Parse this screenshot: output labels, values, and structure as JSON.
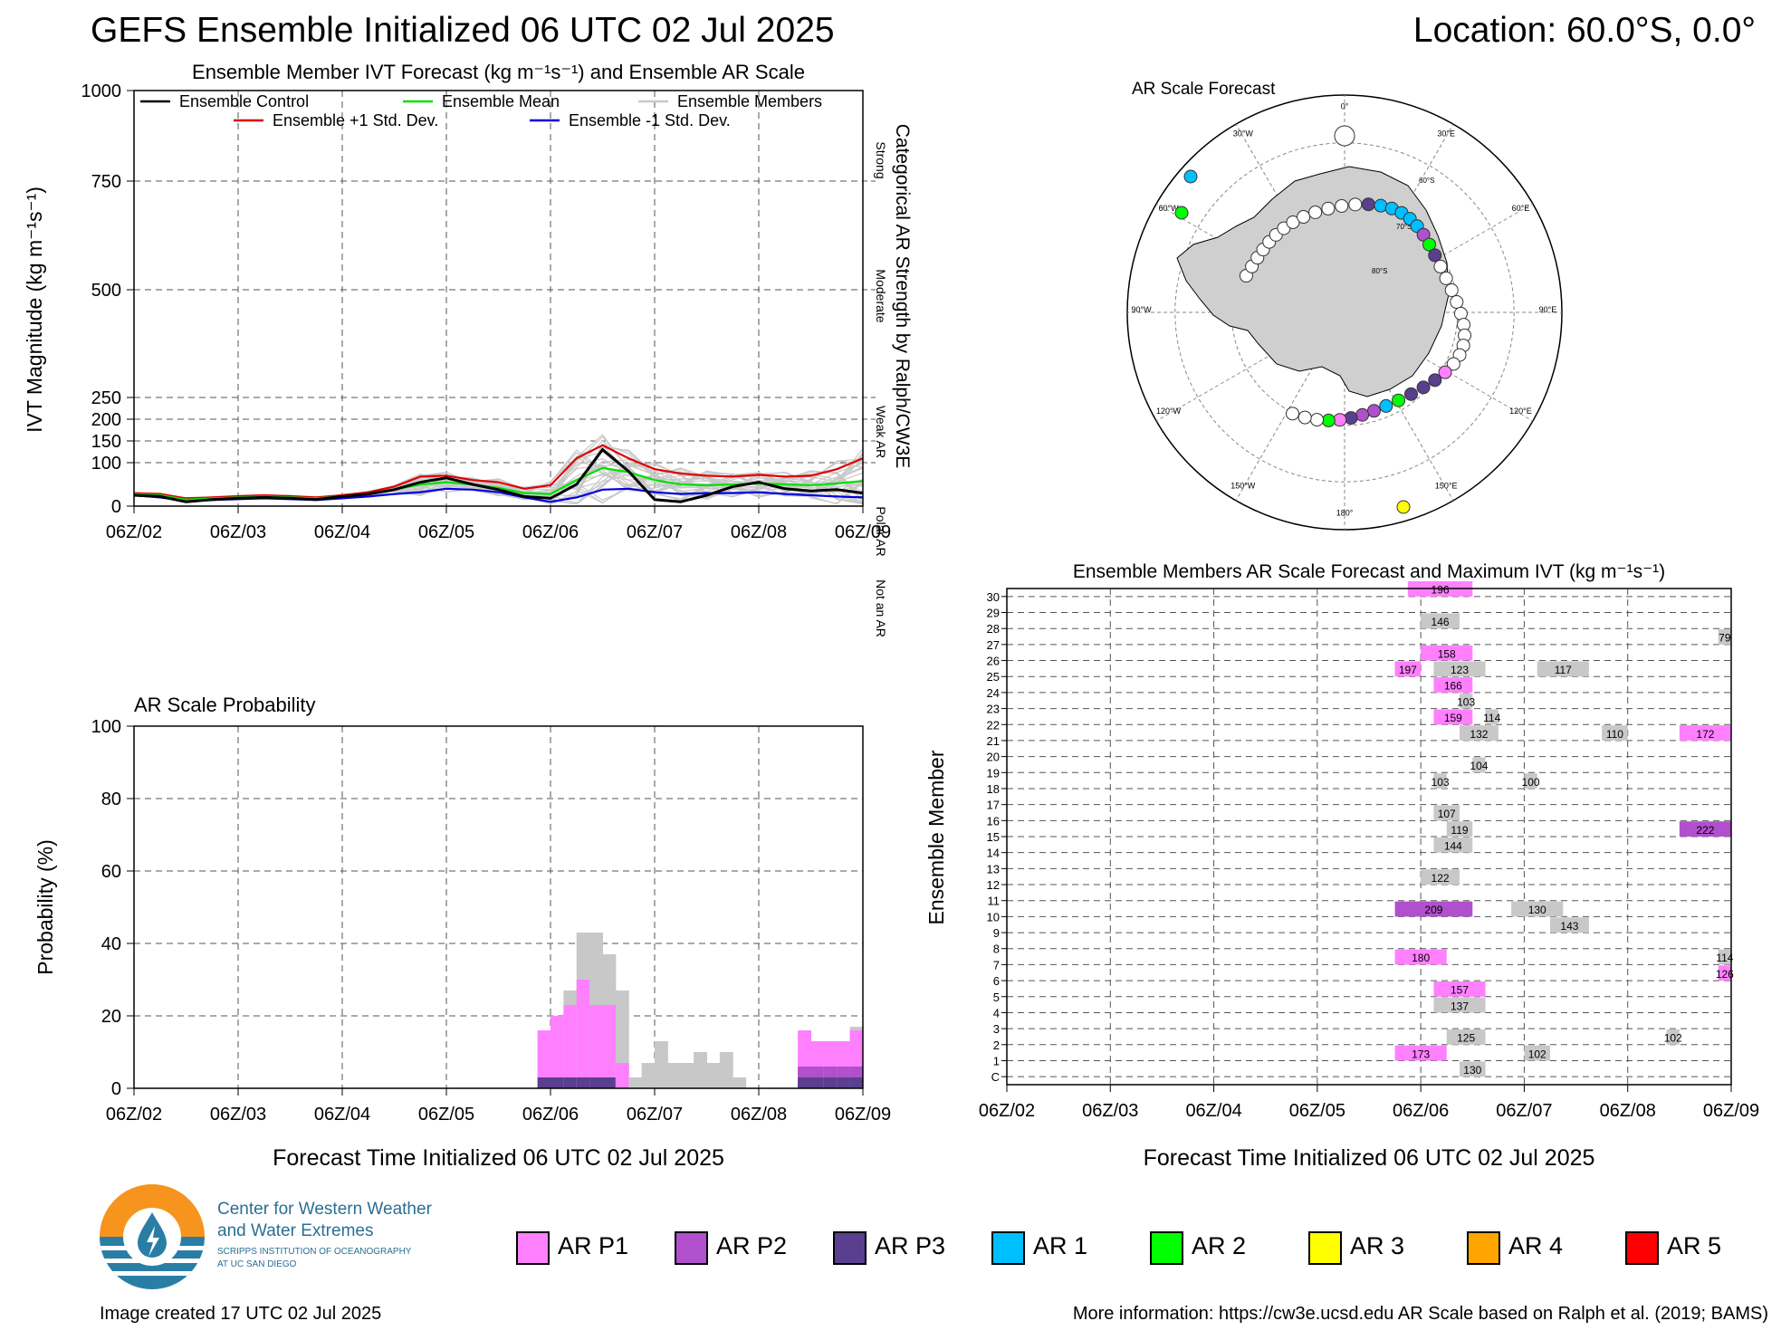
{
  "header": {
    "title": "GEFS Ensemble Initialized 06 UTC 02 Jul 2025",
    "location": "Location: 60.0°S, 0.0°"
  },
  "colors": {
    "ar_p1": "#ff80ff",
    "ar_p2": "#b050cc",
    "ar_p3": "#5a3f8f",
    "ar_1": "#00bfff",
    "ar_2": "#00ff00",
    "ar_3": "#ffff00",
    "ar_4": "#ffa500",
    "ar_5": "#ff0000",
    "members": "#c8c8c8",
    "control": "#000000",
    "mean": "#00e000",
    "plus_sd": "#e00000",
    "minus_sd": "#0000e0"
  },
  "time_ticks": [
    "06Z/02",
    "06Z/03",
    "06Z/04",
    "06Z/05",
    "06Z/06",
    "06Z/07",
    "06Z/08",
    "06Z/09"
  ],
  "chart_data": [
    {
      "id": "ivt",
      "type": "line",
      "title": "Ensemble Member IVT Forecast (kg m⁻¹s⁻¹) and Ensemble AR Scale",
      "ylabel": "IVT Magnitude (kg m⁻¹s⁻¹)",
      "right_label": "Categorical AR Strength by Ralph/CW3E",
      "categories_right": [
        "Strong",
        "Moderate",
        "Weak AR",
        "Polar AR",
        "Not an AR"
      ],
      "yticks": [
        0,
        100,
        150,
        200,
        250,
        500,
        750,
        1000
      ],
      "ylim": [
        0,
        1000
      ],
      "x_range_days": [
        0,
        7
      ],
      "legend": [
        "Ensemble Control",
        "Ensemble Mean",
        "Ensemble Members",
        "Ensemble +1 Std. Dev.",
        "Ensemble -1 Std. Dev."
      ],
      "x_days": [
        0,
        0.25,
        0.5,
        0.75,
        1,
        1.25,
        1.5,
        1.75,
        2,
        2.25,
        2.5,
        2.75,
        3,
        3.25,
        3.5,
        3.75,
        4,
        4.25,
        4.5,
        4.75,
        5,
        5.25,
        5.5,
        5.75,
        6,
        6.25,
        6.5,
        6.75,
        7
      ],
      "series": [
        {
          "name": "Ensemble Control",
          "values": [
            25,
            22,
            10,
            15,
            18,
            20,
            18,
            15,
            22,
            28,
            38,
            55,
            65,
            50,
            38,
            22,
            18,
            50,
            130,
            80,
            15,
            10,
            25,
            45,
            55,
            40,
            35,
            38,
            30
          ]
        },
        {
          "name": "Ensemble Mean",
          "values": [
            28,
            25,
            15,
            18,
            20,
            22,
            20,
            18,
            22,
            28,
            38,
            50,
            55,
            50,
            42,
            30,
            28,
            60,
            88,
            78,
            60,
            50,
            48,
            50,
            52,
            50,
            48,
            52,
            58
          ]
        },
        {
          "name": "Ensemble +1 Std. Dev.",
          "values": [
            30,
            28,
            18,
            20,
            23,
            25,
            23,
            20,
            25,
            32,
            45,
            68,
            70,
            60,
            55,
            40,
            48,
            110,
            140,
            110,
            85,
            75,
            70,
            68,
            72,
            68,
            70,
            85,
            110
          ]
        },
        {
          "name": "Ensemble -1 Std. Dev.",
          "values": [
            25,
            20,
            12,
            14,
            16,
            18,
            16,
            14,
            18,
            22,
            28,
            32,
            40,
            38,
            32,
            20,
            10,
            20,
            38,
            40,
            32,
            28,
            30,
            30,
            32,
            28,
            25,
            22,
            20
          ]
        }
      ]
    },
    {
      "id": "prob",
      "type": "bar",
      "title": "AR Scale Probability",
      "ylabel": "Probability (%)",
      "xlabel": "Forecast Time Initialized 06 UTC 02 Jul 2025",
      "yticks": [
        0,
        20,
        40,
        60,
        80,
        100
      ],
      "ylim": [
        0,
        100
      ],
      "bin_start_days": [
        3.875,
        4,
        4.125,
        4.25,
        4.375,
        4.5,
        4.625,
        4.75,
        4.875,
        5,
        5.125,
        5.25,
        5.375,
        5.5,
        5.625,
        5.75,
        5.875,
        6,
        6.125,
        6.25,
        6.375,
        6.5,
        6.625,
        6.75,
        6.875
      ],
      "series": [
        {
          "name": "AR P3",
          "values": [
            3,
            3,
            3,
            3,
            3,
            3,
            0,
            0,
            0,
            0,
            0,
            0,
            0,
            0,
            0,
            0,
            0,
            0,
            0,
            0,
            3,
            3,
            3,
            3,
            3
          ]
        },
        {
          "name": "AR P2",
          "values": [
            0,
            0,
            0,
            0,
            0,
            0,
            0,
            0,
            0,
            0,
            0,
            0,
            0,
            0,
            0,
            0,
            0,
            0,
            0,
            0,
            3,
            3,
            3,
            3,
            3
          ]
        },
        {
          "name": "AR P1",
          "values": [
            13,
            17,
            20,
            27,
            20,
            20,
            7,
            0,
            0,
            0,
            0,
            0,
            0,
            0,
            0,
            0,
            0,
            0,
            0,
            0,
            10,
            7,
            7,
            7,
            10
          ]
        },
        {
          "name": "Total",
          "values": [
            13,
            17,
            27,
            43,
            43,
            37,
            27,
            3,
            7,
            13,
            7,
            7,
            10,
            7,
            10,
            3,
            0,
            0,
            0,
            0,
            10,
            7,
            10,
            13,
            17
          ]
        }
      ]
    },
    {
      "id": "members",
      "type": "table",
      "title": "Ensemble Members AR Scale Forecast and Maximum IVT (kg m⁻¹s⁻¹)",
      "ylabel": "Ensemble Member",
      "xlabel": "Forecast Time Initialized 06 UTC 02 Jul 2025",
      "members": [
        "C",
        "1",
        "2",
        "3",
        "4",
        "5",
        "6",
        "7",
        "8",
        "9",
        "10",
        "11",
        "12",
        "13",
        "14",
        "15",
        "16",
        "17",
        "18",
        "19",
        "20",
        "21",
        "22",
        "23",
        "24",
        "25",
        "26",
        "27",
        "28",
        "29",
        "30"
      ],
      "events": [
        {
          "member": "C",
          "start": 4.375,
          "end": 4.625,
          "cat": "none",
          "ivt": "130"
        },
        {
          "member": "1",
          "start": 3.75,
          "end": 4.25,
          "cat": "p1",
          "ivt": "173"
        },
        {
          "member": "1",
          "start": 5,
          "end": 5.25,
          "cat": "none",
          "ivt": "102"
        },
        {
          "member": "2",
          "start": 4.25,
          "end": 4.625,
          "cat": "none",
          "ivt": "125"
        },
        {
          "member": "2",
          "start": 6.375,
          "end": 6.5,
          "cat": "none",
          "ivt": "102"
        },
        {
          "member": "4",
          "start": 4.125,
          "end": 4.625,
          "cat": "none",
          "ivt": "137"
        },
        {
          "member": "5",
          "start": 4.125,
          "end": 4.625,
          "cat": "p1",
          "ivt": "157"
        },
        {
          "member": "6",
          "start": 6.875,
          "end": 7,
          "cat": "p1",
          "ivt": "126"
        },
        {
          "member": "7",
          "start": 3.75,
          "end": 4.25,
          "cat": "p1",
          "ivt": "180"
        },
        {
          "member": "7",
          "start": 6.875,
          "end": 7,
          "cat": "none",
          "ivt": "114"
        },
        {
          "member": "9",
          "start": 5.25,
          "end": 5.625,
          "cat": "none",
          "ivt": "143"
        },
        {
          "member": "10",
          "start": 3.75,
          "end": 4.5,
          "cat": "p2",
          "ivt": "209"
        },
        {
          "member": "10",
          "start": 4.875,
          "end": 5.375,
          "cat": "none",
          "ivt": "130"
        },
        {
          "member": "12",
          "start": 4,
          "end": 4.375,
          "cat": "none",
          "ivt": "122"
        },
        {
          "member": "14",
          "start": 4.125,
          "end": 4.5,
          "cat": "none",
          "ivt": "144"
        },
        {
          "member": "15",
          "start": 4.25,
          "end": 4.5,
          "cat": "none",
          "ivt": "119"
        },
        {
          "member": "15",
          "start": 6.5,
          "end": 7,
          "cat": "p2",
          "ivt": "222"
        },
        {
          "member": "16",
          "start": 4.125,
          "end": 4.375,
          "cat": "none",
          "ivt": "107"
        },
        {
          "member": "18",
          "start": 4.125,
          "end": 4.25,
          "cat": "none",
          "ivt": "103"
        },
        {
          "member": "18",
          "start": 5,
          "end": 5.125,
          "cat": "none",
          "ivt": "100"
        },
        {
          "member": "19",
          "start": 4.5,
          "end": 4.625,
          "cat": "none",
          "ivt": "104"
        },
        {
          "member": "21",
          "start": 4.375,
          "end": 4.75,
          "cat": "none",
          "ivt": "132"
        },
        {
          "member": "21",
          "start": 5.75,
          "end": 6,
          "cat": "none",
          "ivt": "110"
        },
        {
          "member": "21",
          "start": 6.5,
          "end": 7,
          "cat": "p1",
          "ivt": "172"
        },
        {
          "member": "22",
          "start": 4.125,
          "end": 4.5,
          "cat": "p1",
          "ivt": "159"
        },
        {
          "member": "22",
          "start": 4.625,
          "end": 4.75,
          "cat": "none",
          "ivt": "114"
        },
        {
          "member": "23",
          "start": 4.375,
          "end": 4.5,
          "cat": "none",
          "ivt": "103"
        },
        {
          "member": "24",
          "start": 4.125,
          "end": 4.5,
          "cat": "p1",
          "ivt": "166"
        },
        {
          "member": "25",
          "start": 3.75,
          "end": 4.0,
          "cat": "p1",
          "ivt": "197"
        },
        {
          "member": "25",
          "start": 4.125,
          "end": 4.625,
          "cat": "none",
          "ivt": "123"
        },
        {
          "member": "25",
          "start": 5.125,
          "end": 5.625,
          "cat": "none",
          "ivt": "117"
        },
        {
          "member": "26",
          "start": 4,
          "end": 4.5,
          "cat": "p1",
          "ivt": "158"
        },
        {
          "member": "27",
          "start": 6.875,
          "end": 7,
          "cat": "none",
          "ivt": "79"
        },
        {
          "member": "28",
          "start": 4,
          "end": 4.375,
          "cat": "none",
          "ivt": "146"
        },
        {
          "member": "30",
          "start": 3.875,
          "end": 4.5,
          "cat": "p1",
          "ivt": "196"
        }
      ]
    }
  ],
  "map": {
    "title": "AR Scale Forecast",
    "lon_labels": [
      "0°",
      "30°E",
      "60°E",
      "90°E",
      "120°E",
      "150°E",
      "180°",
      "150°W",
      "120°W",
      "90°W",
      "60°W",
      "30°W"
    ],
    "lat_labels": [
      "60°S",
      "70°S",
      "80°S"
    ],
    "dot_categories": [
      "none",
      "p1",
      "p2",
      "p3",
      "ar1",
      "ar2",
      "ar3"
    ]
  },
  "legend": {
    "items": [
      {
        "label": "AR P1",
        "color": "#ff80ff"
      },
      {
        "label": "AR P2",
        "color": "#b050cc"
      },
      {
        "label": "AR P3",
        "color": "#5a3f8f"
      },
      {
        "label": "AR 1",
        "color": "#00bfff"
      },
      {
        "label": "AR 2",
        "color": "#00ff00"
      },
      {
        "label": "AR 3",
        "color": "#ffff00"
      },
      {
        "label": "AR 4",
        "color": "#ffa500"
      },
      {
        "label": "AR 5",
        "color": "#ff0000"
      }
    ]
  },
  "logo": {
    "line1": "Center for Western Weather",
    "line2": "and Water Extremes",
    "line3": "SCRIPPS INSTITUTION OF OCEANOGRAPHY",
    "line4": "AT UC SAN DIEGO"
  },
  "footer": {
    "created": "Image created 17 UTC 02 Jul 2025",
    "more_info": "More information: https://cw3e.ucsd.edu AR Scale based on Ralph et al. (2019; BAMS)"
  }
}
